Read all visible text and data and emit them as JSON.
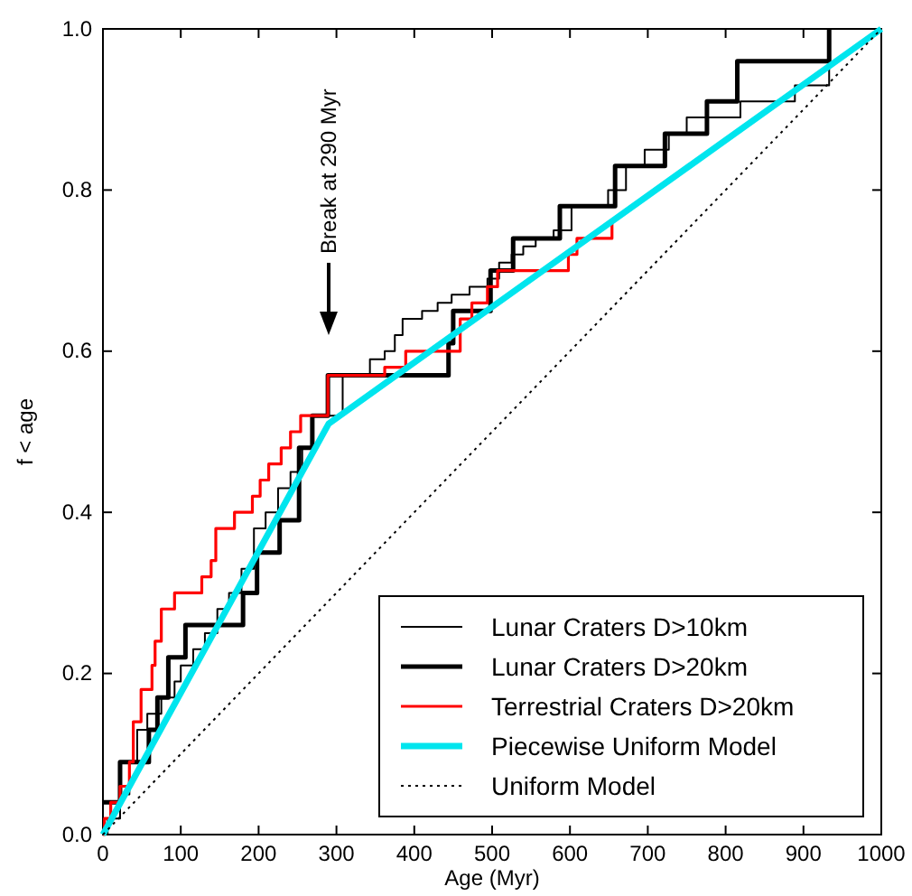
{
  "chart_data": {
    "type": "step",
    "xlabel": "Age (Myr)",
    "ylabel": "f < age",
    "xlim": [
      0,
      1000
    ],
    "ylim": [
      0,
      1
    ],
    "xticks": [
      0,
      100,
      200,
      300,
      400,
      500,
      600,
      700,
      800,
      900,
      1000
    ],
    "yticks": [
      {
        "value": 0,
        "label": "0.0"
      },
      {
        "value": 0.2,
        "label": "0.2"
      },
      {
        "value": 0.4,
        "label": "0.4"
      },
      {
        "value": 0.6,
        "label": "0.6"
      },
      {
        "value": 0.8,
        "label": "0.8"
      },
      {
        "value": 1,
        "label": "1.0"
      }
    ],
    "grid": false,
    "legend": "bottom right",
    "marker": "none",
    "annotations": [
      "Break at 290 Myr"
    ],
    "series": [
      {
        "name": "Lunar Craters D>10km",
        "color": "#000000",
        "x": [
          0,
          6,
          22,
          34,
          44,
          57,
          75,
          92,
          100,
          116,
          131,
          147,
          162,
          178,
          194,
          209,
          225,
          241,
          256,
          270,
          308,
          343,
          362,
          375,
          385,
          410,
          430,
          448,
          471,
          494,
          509,
          525,
          540,
          556,
          579,
          602,
          649,
          672,
          696,
          727,
          750,
          819,
          889,
          933
        ],
        "values": [
          0,
          0.02,
          0.05,
          0.09,
          0.13,
          0.15,
          0.17,
          0.19,
          0.21,
          0.23,
          0.25,
          0.28,
          0.3,
          0.33,
          0.38,
          0.4,
          0.43,
          0.45,
          0.48,
          0.52,
          0.57,
          0.59,
          0.6,
          0.62,
          0.64,
          0.65,
          0.66,
          0.67,
          0.68,
          0.69,
          0.71,
          0.72,
          0.73,
          0.74,
          0.75,
          0.78,
          0.8,
          0.83,
          0.85,
          0.87,
          0.89,
          0.91,
          0.93,
          1
        ]
      },
      {
        "name": "Lunar Craters D>20km",
        "color": "#000000",
        "x": [
          0,
          22,
          59,
          70,
          84,
          106,
          180,
          198,
          227,
          252,
          269,
          289,
          444,
          450,
          498,
          527,
          587,
          658,
          722,
          776,
          815,
          933
        ],
        "values": [
          0.04,
          0.09,
          0.13,
          0.17,
          0.22,
          0.26,
          0.3,
          0.35,
          0.39,
          0.48,
          0.52,
          0.57,
          0.61,
          0.65,
          0.7,
          0.74,
          0.78,
          0.83,
          0.87,
          0.91,
          0.96,
          1
        ]
      },
      {
        "name": "Terrestrial Craters D>20km",
        "color": "#ff0000",
        "x": [
          0,
          2,
          10,
          22,
          34,
          39,
          49,
          63,
          67,
          75,
          92,
          127,
          139,
          145,
          169,
          192,
          202,
          213,
          229,
          241,
          254,
          289,
          362,
          389,
          459,
          474,
          494,
          507,
          598,
          609,
          654
        ],
        "values": [
          0,
          0.02,
          0.04,
          0.06,
          0.09,
          0.14,
          0.18,
          0.21,
          0.24,
          0.28,
          0.3,
          0.32,
          0.34,
          0.38,
          0.4,
          0.42,
          0.44,
          0.46,
          0.48,
          0.5,
          0.52,
          0.57,
          0.58,
          0.6,
          0.64,
          0.66,
          0.68,
          0.7,
          0.72,
          0.74,
          0.76
        ]
      },
      {
        "name": "Piecewise Uniform Model",
        "type": "line",
        "color": "#00e5ee",
        "x": [
          0,
          290,
          1000
        ],
        "values": [
          0,
          0.51,
          1
        ]
      },
      {
        "name": "Uniform Model",
        "type": "line",
        "line_style": "dotted",
        "color": "#000000",
        "x": [
          0,
          1000
        ],
        "values": [
          0,
          1
        ]
      }
    ]
  }
}
